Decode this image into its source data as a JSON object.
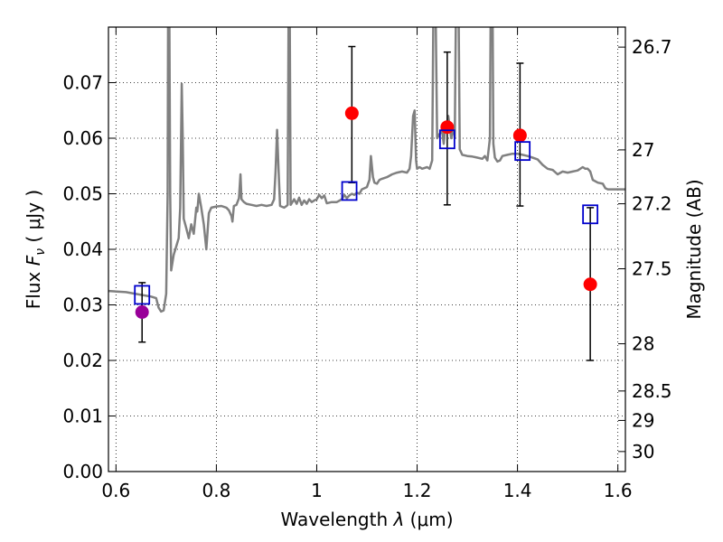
{
  "chart_data": {
    "type": "scatter",
    "xlabel": "Wavelength  λ (μm)",
    "ylabel": "Flux  F_ν  ( μJy )",
    "ylabel_parts": {
      "prefix": "Flux  ",
      "symbol": "F",
      "subscript": "ν",
      "suffix": "  ( μJy )"
    },
    "xlabel_parts": {
      "prefix": "Wavelength  ",
      "symbol": "λ",
      "suffix": " (μm)"
    },
    "y2label": "Magnitude (AB)",
    "xlim": [
      0.585,
      1.615
    ],
    "ylim": [
      0.0,
      0.08
    ],
    "grid": true,
    "x_ticks": [
      0.6,
      0.8,
      1.0,
      1.2,
      1.4,
      1.6
    ],
    "x_tick_labels": [
      "0.6",
      "0.8",
      "1",
      "1.2",
      "1.4",
      "1.6"
    ],
    "y_ticks": [
      0.0,
      0.01,
      0.02,
      0.03,
      0.04,
      0.05,
      0.06,
      0.07
    ],
    "y_tick_labels": [
      "0.00",
      "0.01",
      "0.02",
      "0.03",
      "0.04",
      "0.05",
      "0.06",
      "0.07"
    ],
    "y2_ticks": [
      {
        "label": "26.7",
        "flux": 0.0764
      },
      {
        "label": "27",
        "flux": 0.0579
      },
      {
        "label": "27.2",
        "flux": 0.0482
      },
      {
        "label": "27.5",
        "flux": 0.0365
      },
      {
        "label": "28",
        "flux": 0.023
      },
      {
        "label": "28.5",
        "flux": 0.0145
      },
      {
        "label": "29",
        "flux": 0.0092
      },
      {
        "label": "30",
        "flux": 0.0036
      }
    ],
    "series": [
      {
        "kind": "line",
        "color": "#808080",
        "points": [
          [
            0.585,
            0.0325
          ],
          [
            0.62,
            0.0323
          ],
          [
            0.65,
            0.0318
          ],
          [
            0.67,
            0.0315
          ],
          [
            0.68,
            0.0312
          ],
          [
            0.685,
            0.0295
          ],
          [
            0.69,
            0.0288
          ],
          [
            0.695,
            0.029
          ],
          [
            0.7,
            0.032
          ],
          [
            0.703,
            0.05
          ],
          [
            0.704,
            0.09
          ],
          [
            0.706,
            0.09
          ],
          [
            0.708,
            0.05
          ],
          [
            0.71,
            0.0362
          ],
          [
            0.715,
            0.039
          ],
          [
            0.72,
            0.0405
          ],
          [
            0.725,
            0.042
          ],
          [
            0.728,
            0.0475
          ],
          [
            0.731,
            0.0698
          ],
          [
            0.733,
            0.06
          ],
          [
            0.735,
            0.0455
          ],
          [
            0.74,
            0.0438
          ],
          [
            0.745,
            0.042
          ],
          [
            0.75,
            0.0445
          ],
          [
            0.755,
            0.0428
          ],
          [
            0.76,
            0.0475
          ],
          [
            0.762,
            0.0468
          ],
          [
            0.765,
            0.05
          ],
          [
            0.77,
            0.0475
          ],
          [
            0.775,
            0.0445
          ],
          [
            0.78,
            0.04
          ],
          [
            0.785,
            0.0465
          ],
          [
            0.79,
            0.0475
          ],
          [
            0.8,
            0.0477
          ],
          [
            0.81,
            0.0478
          ],
          [
            0.82,
            0.0475
          ],
          [
            0.825,
            0.047
          ],
          [
            0.83,
            0.046
          ],
          [
            0.832,
            0.045
          ],
          [
            0.835,
            0.0478
          ],
          [
            0.84,
            0.048
          ],
          [
            0.845,
            0.0492
          ],
          [
            0.848,
            0.0535
          ],
          [
            0.85,
            0.049
          ],
          [
            0.855,
            0.0485
          ],
          [
            0.86,
            0.0482
          ],
          [
            0.87,
            0.048
          ],
          [
            0.88,
            0.0478
          ],
          [
            0.89,
            0.048
          ],
          [
            0.9,
            0.0478
          ],
          [
            0.91,
            0.048
          ],
          [
            0.915,
            0.049
          ],
          [
            0.918,
            0.054
          ],
          [
            0.921,
            0.0615
          ],
          [
            0.924,
            0.054
          ],
          [
            0.927,
            0.0478
          ],
          [
            0.935,
            0.0475
          ],
          [
            0.94,
            0.0478
          ],
          [
            0.942,
            0.048
          ],
          [
            0.944,
            0.086
          ],
          [
            0.946,
            0.086
          ],
          [
            0.948,
            0.048
          ],
          [
            0.955,
            0.049
          ],
          [
            0.96,
            0.0482
          ],
          [
            0.965,
            0.0493
          ],
          [
            0.97,
            0.048
          ],
          [
            0.975,
            0.0488
          ],
          [
            0.98,
            0.0482
          ],
          [
            0.985,
            0.049
          ],
          [
            0.99,
            0.0485
          ],
          [
            0.995,
            0.0488
          ],
          [
            1.0,
            0.049
          ],
          [
            1.005,
            0.0498
          ],
          [
            1.01,
            0.0492
          ],
          [
            1.015,
            0.0497
          ],
          [
            1.02,
            0.0483
          ],
          [
            1.03,
            0.0485
          ],
          [
            1.04,
            0.0485
          ],
          [
            1.05,
            0.049
          ],
          [
            1.055,
            0.0498
          ],
          [
            1.06,
            0.0492
          ],
          [
            1.065,
            0.0497
          ],
          [
            1.07,
            0.05
          ],
          [
            1.075,
            0.0498
          ],
          [
            1.08,
            0.0502
          ],
          [
            1.085,
            0.05
          ],
          [
            1.09,
            0.0508
          ],
          [
            1.095,
            0.051
          ],
          [
            1.1,
            0.0512
          ],
          [
            1.105,
            0.0525
          ],
          [
            1.108,
            0.0568
          ],
          [
            1.112,
            0.053
          ],
          [
            1.115,
            0.052
          ],
          [
            1.12,
            0.0518
          ],
          [
            1.125,
            0.0525
          ],
          [
            1.13,
            0.0527
          ],
          [
            1.14,
            0.053
          ],
          [
            1.15,
            0.0535
          ],
          [
            1.16,
            0.0538
          ],
          [
            1.17,
            0.054
          ],
          [
            1.18,
            0.0538
          ],
          [
            1.185,
            0.0545
          ],
          [
            1.188,
            0.0568
          ],
          [
            1.192,
            0.064
          ],
          [
            1.195,
            0.065
          ],
          [
            1.198,
            0.056
          ],
          [
            1.2,
            0.0545
          ],
          [
            1.205,
            0.0548
          ],
          [
            1.21,
            0.0545
          ],
          [
            1.22,
            0.0548
          ],
          [
            1.225,
            0.0545
          ],
          [
            1.23,
            0.056
          ],
          [
            1.233,
            0.09
          ],
          [
            1.236,
            0.09
          ],
          [
            1.24,
            0.06
          ],
          [
            1.245,
            0.0608
          ],
          [
            1.25,
            0.0612
          ],
          [
            1.253,
            0.059
          ],
          [
            1.256,
            0.062
          ],
          [
            1.258,
            0.0615
          ],
          [
            1.262,
            0.064
          ],
          [
            1.265,
            0.062
          ],
          [
            1.268,
            0.06
          ],
          [
            1.272,
            0.062
          ],
          [
            1.275,
            0.06
          ],
          [
            1.278,
            0.09
          ],
          [
            1.282,
            0.09
          ],
          [
            1.285,
            0.058
          ],
          [
            1.29,
            0.057
          ],
          [
            1.3,
            0.0568
          ],
          [
            1.31,
            0.0567
          ],
          [
            1.32,
            0.0565
          ],
          [
            1.33,
            0.0563
          ],
          [
            1.335,
            0.0568
          ],
          [
            1.34,
            0.056
          ],
          [
            1.345,
            0.06
          ],
          [
            1.347,
            0.09
          ],
          [
            1.35,
            0.09
          ],
          [
            1.352,
            0.059
          ],
          [
            1.355,
            0.0565
          ],
          [
            1.36,
            0.0558
          ],
          [
            1.365,
            0.056
          ],
          [
            1.37,
            0.0568
          ],
          [
            1.38,
            0.057
          ],
          [
            1.39,
            0.0572
          ],
          [
            1.4,
            0.0572
          ],
          [
            1.41,
            0.057
          ],
          [
            1.42,
            0.0568
          ],
          [
            1.43,
            0.0565
          ],
          [
            1.44,
            0.0562
          ],
          [
            1.45,
            0.0552
          ],
          [
            1.46,
            0.0545
          ],
          [
            1.47,
            0.0543
          ],
          [
            1.48,
            0.0535
          ],
          [
            1.49,
            0.054
          ],
          [
            1.5,
            0.0538
          ],
          [
            1.51,
            0.054
          ],
          [
            1.52,
            0.0542
          ],
          [
            1.53,
            0.0548
          ],
          [
            1.535,
            0.0545
          ],
          [
            1.54,
            0.0545
          ],
          [
            1.545,
            0.054
          ],
          [
            1.55,
            0.0525
          ],
          [
            1.56,
            0.052
          ],
          [
            1.57,
            0.0518
          ],
          [
            1.575,
            0.051
          ],
          [
            1.58,
            0.0508
          ],
          [
            1.59,
            0.0508
          ],
          [
            1.6,
            0.0508
          ],
          [
            1.61,
            0.0508
          ],
          [
            1.615,
            0.0508
          ]
        ]
      },
      {
        "kind": "errorbar",
        "color": "#000000",
        "points": [
          {
            "x": 0.652,
            "y": 0.0287,
            "low": 0.0233,
            "high": 0.034
          },
          {
            "x": 1.07,
            "y": 0.0645,
            "low": 0.052,
            "high": 0.0765
          },
          {
            "x": 1.26,
            "y": 0.062,
            "low": 0.048,
            "high": 0.0755
          },
          {
            "x": 1.405,
            "y": 0.0605,
            "low": 0.0478,
            "high": 0.0735
          },
          {
            "x": 1.545,
            "y": 0.0337,
            "low": 0.02,
            "high": 0.0475
          }
        ]
      },
      {
        "kind": "points",
        "marker": "circle",
        "points": [
          {
            "x": 0.652,
            "y": 0.0287,
            "color": "#990099"
          },
          {
            "x": 1.07,
            "y": 0.0645,
            "color": "#ff0000"
          },
          {
            "x": 1.26,
            "y": 0.062,
            "color": "#ff0000"
          },
          {
            "x": 1.405,
            "y": 0.0605,
            "color": "#ff0000"
          },
          {
            "x": 1.545,
            "y": 0.0337,
            "color": "#ff0000"
          }
        ]
      },
      {
        "kind": "points",
        "marker": "square-open",
        "color": "#0000cc",
        "points": [
          {
            "x": 0.652,
            "y": 0.0318
          },
          {
            "x": 1.065,
            "y": 0.0505
          },
          {
            "x": 1.26,
            "y": 0.0598
          },
          {
            "x": 1.41,
            "y": 0.0577
          },
          {
            "x": 1.545,
            "y": 0.0463
          }
        ]
      }
    ]
  }
}
